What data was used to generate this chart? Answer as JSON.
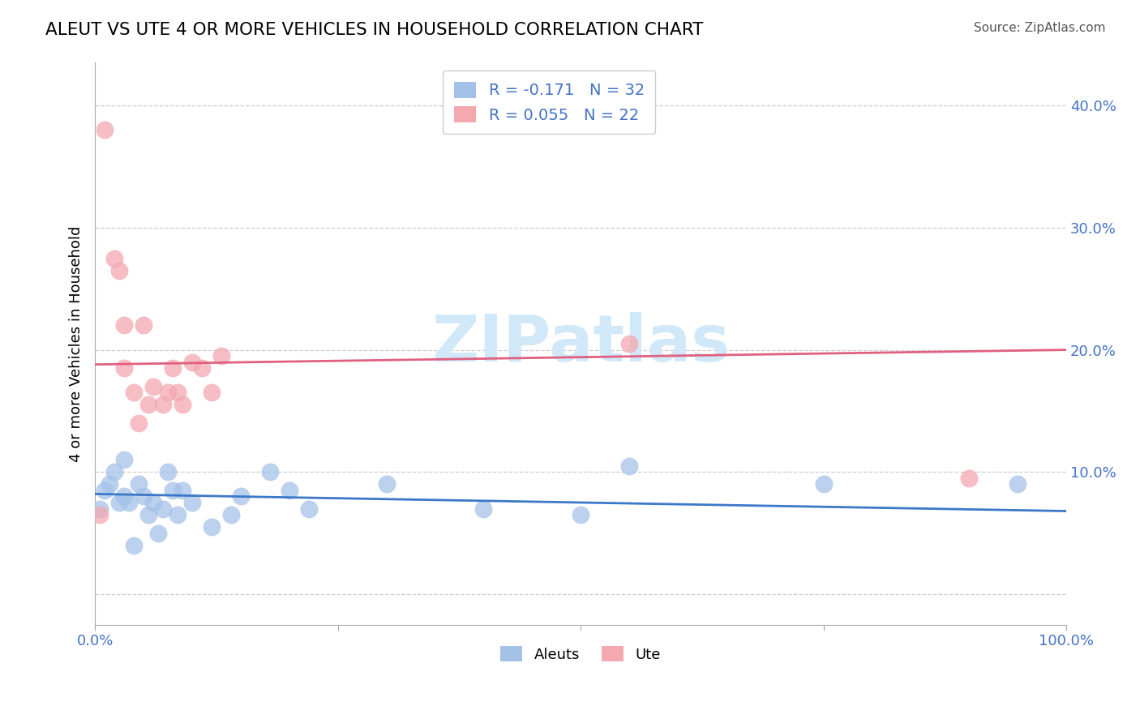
{
  "title": "ALEUT VS UTE 4 OR MORE VEHICLES IN HOUSEHOLD CORRELATION CHART",
  "source_text": "Source: ZipAtlas.com",
  "ylabel": "4 or more Vehicles in Household",
  "ytick_values": [
    0.0,
    0.1,
    0.2,
    0.3,
    0.4
  ],
  "xlim": [
    0.0,
    1.0
  ],
  "ylim": [
    -0.025,
    0.435
  ],
  "aleuts_R": -0.171,
  "aleuts_N": 32,
  "ute_R": 0.055,
  "ute_N": 22,
  "aleuts_color": "#a4c2e8",
  "aleuts_line_color": "#3c78c8",
  "ute_color": "#f4a8b0",
  "ute_line_color": "#e06080",
  "aleuts_scatter_x": [
    0.005,
    0.01,
    0.015,
    0.02,
    0.025,
    0.03,
    0.03,
    0.035,
    0.04,
    0.045,
    0.05,
    0.055,
    0.06,
    0.065,
    0.07,
    0.075,
    0.08,
    0.085,
    0.09,
    0.1,
    0.12,
    0.14,
    0.15,
    0.18,
    0.2,
    0.22,
    0.3,
    0.4,
    0.5,
    0.55,
    0.75,
    0.95
  ],
  "aleuts_scatter_y": [
    0.07,
    0.085,
    0.09,
    0.1,
    0.075,
    0.11,
    0.08,
    0.075,
    0.04,
    0.09,
    0.08,
    0.065,
    0.075,
    0.05,
    0.07,
    0.1,
    0.085,
    0.065,
    0.085,
    0.075,
    0.055,
    0.065,
    0.08,
    0.1,
    0.085,
    0.07,
    0.09,
    0.07,
    0.065,
    0.105,
    0.09,
    0.09
  ],
  "ute_scatter_x": [
    0.005,
    0.01,
    0.02,
    0.025,
    0.03,
    0.03,
    0.04,
    0.045,
    0.05,
    0.055,
    0.06,
    0.07,
    0.075,
    0.08,
    0.085,
    0.09,
    0.1,
    0.11,
    0.12,
    0.13,
    0.55,
    0.9
  ],
  "ute_scatter_y": [
    0.065,
    0.38,
    0.275,
    0.265,
    0.22,
    0.185,
    0.165,
    0.14,
    0.22,
    0.155,
    0.17,
    0.155,
    0.165,
    0.185,
    0.165,
    0.155,
    0.19,
    0.185,
    0.165,
    0.195,
    0.205,
    0.095
  ],
  "legend_labels": [
    "Aleuts",
    "Ute"
  ],
  "background_color": "#ffffff",
  "watermark_text": "ZIPatlas",
  "watermark_color": "#d0e8f8",
  "grid_color": "#cccccc",
  "tick_color": "#4472c4"
}
